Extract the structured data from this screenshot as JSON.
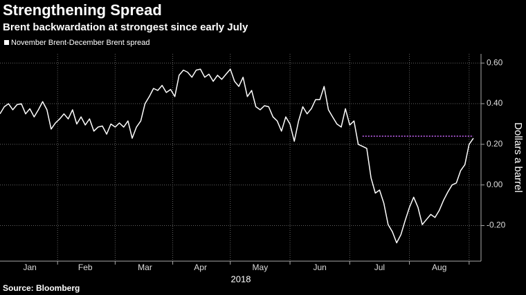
{
  "chart_data": {
    "type": "line",
    "title": "Strengthening Spread",
    "subtitle": "Brent backwardation at strongest since early July",
    "y_axis_label": "Dollars a barrel",
    "x_axis_label": "2018",
    "source": "Source: Bloomberg",
    "categories": [
      null,
      null,
      null,
      null,
      null,
      null,
      null,
      "Jan",
      null,
      null,
      null,
      null,
      null,
      null,
      null,
      null,
      null,
      null,
      null,
      null,
      "Feb",
      null,
      null,
      null,
      null,
      null,
      null,
      null,
      null,
      null,
      null,
      null,
      null,
      null,
      "Mar",
      null,
      null,
      null,
      null,
      null,
      null,
      null,
      null,
      null,
      null,
      null,
      null,
      "Apr",
      null,
      null,
      null,
      null,
      null,
      null,
      null,
      null,
      null,
      null,
      null,
      null,
      null,
      "May",
      null,
      null,
      null,
      null,
      null,
      null,
      null,
      null,
      null,
      null,
      null,
      null,
      null,
      "Jun",
      null,
      null,
      null,
      null,
      null,
      null,
      null,
      null,
      null,
      null,
      null,
      null,
      null,
      "Jul",
      null,
      null,
      null,
      null,
      null,
      null,
      null,
      null,
      null,
      null,
      null,
      null,
      null,
      "Aug",
      null,
      null,
      null,
      null,
      null,
      null,
      null,
      null
    ],
    "series": [
      {
        "name": "November Brent-December Brent spread",
        "color": "#ffffff",
        "values": [
          0.35,
          0.385,
          0.4,
          0.37,
          0.395,
          0.4,
          0.35,
          0.375,
          0.335,
          0.37,
          0.41,
          0.37,
          0.275,
          0.305,
          0.325,
          0.35,
          0.325,
          0.37,
          0.3,
          0.335,
          0.295,
          0.325,
          0.265,
          0.285,
          0.29,
          0.25,
          0.3,
          0.285,
          0.305,
          0.285,
          0.315,
          0.23,
          0.285,
          0.315,
          0.4,
          0.435,
          0.475,
          0.465,
          0.49,
          0.455,
          0.47,
          0.435,
          0.54,
          0.565,
          0.555,
          0.53,
          0.565,
          0.57,
          0.53,
          0.545,
          0.51,
          0.54,
          0.52,
          0.545,
          0.57,
          0.51,
          0.485,
          0.53,
          0.435,
          0.465,
          0.385,
          0.37,
          0.39,
          0.385,
          0.335,
          0.315,
          0.265,
          0.335,
          0.3,
          0.215,
          0.315,
          0.385,
          0.35,
          0.375,
          0.42,
          0.42,
          0.485,
          0.37,
          0.335,
          0.3,
          0.285,
          0.375,
          0.295,
          0.315,
          0.2,
          0.19,
          0.18,
          0.035,
          -0.04,
          -0.025,
          -0.09,
          -0.195,
          -0.23,
          -0.285,
          -0.245,
          -0.175,
          -0.11,
          -0.06,
          -0.11,
          -0.195,
          -0.17,
          -0.145,
          -0.16,
          -0.125,
          -0.075,
          -0.035,
          0.0,
          0.01,
          0.07,
          0.1,
          0.2,
          0.23
        ]
      }
    ],
    "reference_line": {
      "value": 0.24,
      "color": "#cc66ff"
    },
    "ylim": [
      -0.375,
      0.645
    ],
    "yticks": [
      {
        "value": -0.2,
        "label": "-0.20"
      },
      {
        "value": 0,
        "label": "0.00"
      },
      {
        "value": 0.2,
        "label": "0.20"
      },
      {
        "value": 0.4,
        "label": "0.40"
      },
      {
        "value": 0.6,
        "label": "0.60"
      }
    ],
    "grid": true,
    "legend": "top-left"
  }
}
